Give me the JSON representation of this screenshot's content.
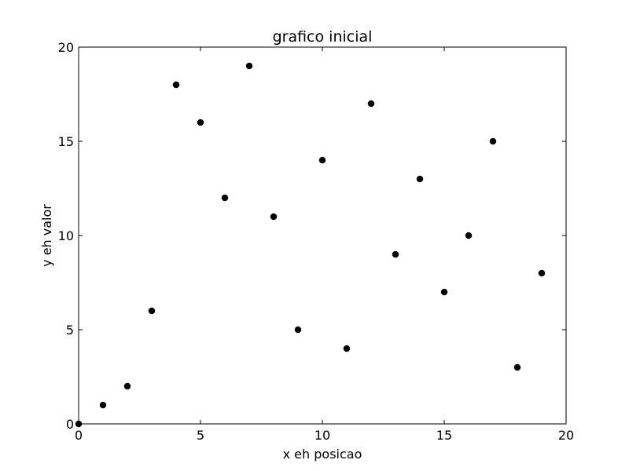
{
  "chart_data": {
    "type": "scatter",
    "title": "grafico inicial",
    "xlabel": "x eh posicao",
    "ylabel": "y eh valor",
    "xlim": [
      0,
      20
    ],
    "ylim": [
      0,
      20
    ],
    "xticks": [
      0,
      5,
      10,
      15,
      20
    ],
    "yticks": [
      0,
      5,
      10,
      15,
      20
    ],
    "grid": false,
    "legend": "none",
    "marker": "circle",
    "marker_color": "#000000",
    "series": [
      {
        "x": [
          0,
          1,
          2,
          3,
          4,
          5,
          6,
          7,
          8,
          9,
          10,
          11,
          12,
          13,
          14,
          15,
          16,
          17,
          18,
          19
        ],
        "y": [
          0,
          1,
          2,
          6,
          18,
          16,
          12,
          19,
          11,
          5,
          14,
          4,
          17,
          9,
          13,
          7,
          10,
          15,
          3,
          8
        ]
      }
    ]
  }
}
